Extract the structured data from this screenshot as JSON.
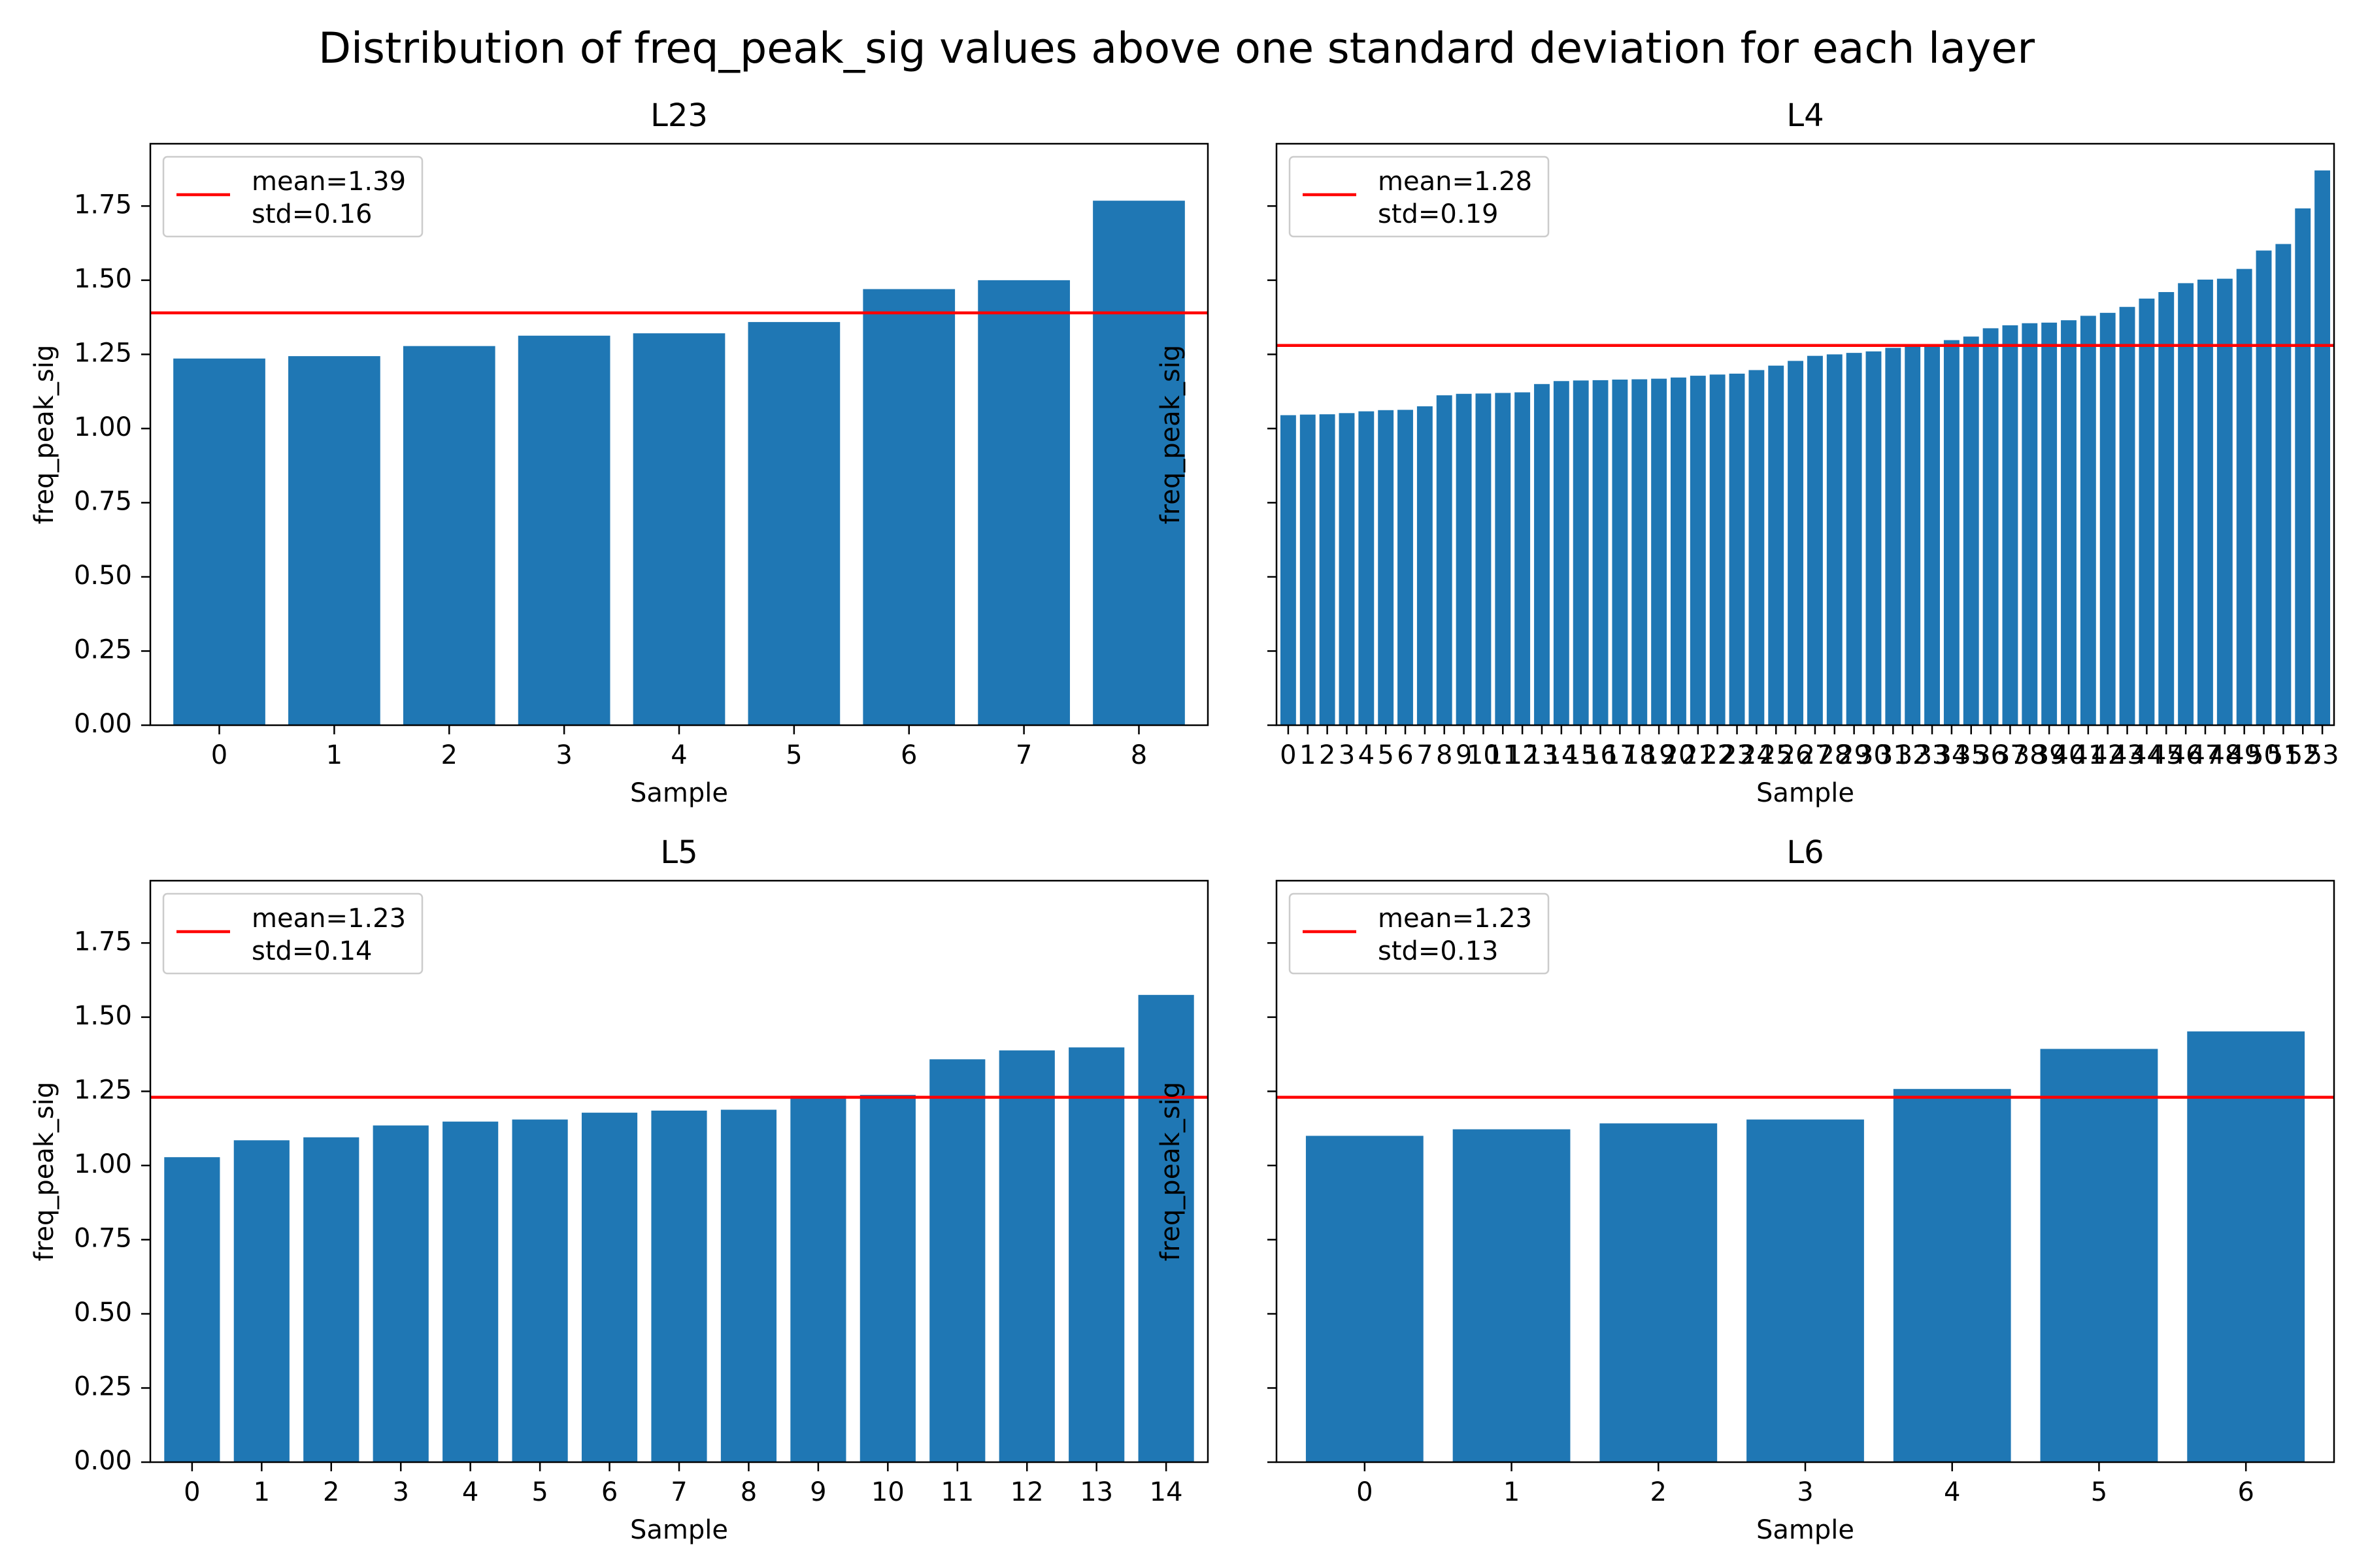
{
  "figure": {
    "title": "Distribution of freq_peak_sig values above one standard deviation for each layer"
  },
  "colors": {
    "bar": "#1f77b4",
    "mean_line": "#ff0000",
    "axes": "#000000",
    "legend_border": "#cccccc"
  },
  "chart_data": [
    {
      "type": "bar",
      "title": "L23",
      "xlabel": "Sample",
      "ylabel": "freq_peak_sig",
      "ylim": [
        0,
        1.96
      ],
      "yticks": [
        "0.00",
        "0.25",
        "0.50",
        "0.75",
        "1.00",
        "1.25",
        "1.50",
        "1.75"
      ],
      "show_ytick_labels": true,
      "categories": [
        "0",
        "1",
        "2",
        "3",
        "4",
        "5",
        "6",
        "7",
        "8"
      ],
      "values": [
        1.236,
        1.244,
        1.278,
        1.313,
        1.321,
        1.359,
        1.47,
        1.5,
        1.768
      ],
      "mean": 1.39,
      "legend": {
        "line1": "mean=1.39",
        "line2": "std=0.16",
        "placement": "upper-left"
      }
    },
    {
      "type": "bar",
      "title": "L4",
      "xlabel": "Sample",
      "ylabel": "freq_peak_sig",
      "ylim": [
        0,
        1.96
      ],
      "yticks": [
        "0.00",
        "0.25",
        "0.50",
        "0.75",
        "1.00",
        "1.25",
        "1.50",
        "1.75"
      ],
      "show_ytick_labels": false,
      "categories": [
        "0",
        "1",
        "2",
        "3",
        "4",
        "5",
        "6",
        "7",
        "8",
        "9",
        "10",
        "11",
        "12",
        "13",
        "14",
        "15",
        "16",
        "17",
        "18",
        "19",
        "20",
        "21",
        "22",
        "23",
        "24",
        "25",
        "26",
        "27",
        "28",
        "29",
        "30",
        "31",
        "32",
        "33",
        "34",
        "35",
        "36",
        "37",
        "38",
        "39",
        "40",
        "41",
        "42",
        "43",
        "44",
        "45",
        "46",
        "47",
        "48",
        "49",
        "50",
        "51",
        "52",
        "53"
      ],
      "values": [
        1.045,
        1.047,
        1.048,
        1.052,
        1.058,
        1.062,
        1.063,
        1.075,
        1.112,
        1.117,
        1.118,
        1.12,
        1.122,
        1.15,
        1.16,
        1.162,
        1.163,
        1.165,
        1.166,
        1.168,
        1.172,
        1.178,
        1.182,
        1.185,
        1.197,
        1.212,
        1.228,
        1.245,
        1.25,
        1.255,
        1.26,
        1.272,
        1.278,
        1.285,
        1.298,
        1.31,
        1.338,
        1.348,
        1.355,
        1.357,
        1.365,
        1.38,
        1.39,
        1.41,
        1.438,
        1.46,
        1.49,
        1.502,
        1.505,
        1.538,
        1.6,
        1.622,
        1.742,
        1.87
      ],
      "mean": 1.28,
      "legend": {
        "line1": "mean=1.28",
        "line2": "std=0.19",
        "placement": "upper-left"
      }
    },
    {
      "type": "bar",
      "title": "L5",
      "xlabel": "Sample",
      "ylabel": "freq_peak_sig",
      "ylim": [
        0,
        1.96
      ],
      "yticks": [
        "0.00",
        "0.25",
        "0.50",
        "0.75",
        "1.00",
        "1.25",
        "1.50",
        "1.75"
      ],
      "show_ytick_labels": true,
      "categories": [
        "0",
        "1",
        "2",
        "3",
        "4",
        "5",
        "6",
        "7",
        "8",
        "9",
        "10",
        "11",
        "12",
        "13",
        "14"
      ],
      "values": [
        1.028,
        1.085,
        1.095,
        1.135,
        1.148,
        1.155,
        1.178,
        1.185,
        1.188,
        1.235,
        1.238,
        1.358,
        1.388,
        1.398,
        1.575
      ],
      "mean": 1.23,
      "legend": {
        "line1": "mean=1.23",
        "line2": "std=0.14",
        "placement": "upper-left"
      }
    },
    {
      "type": "bar",
      "title": "L6",
      "xlabel": "Sample",
      "ylabel": "freq_peak_sig",
      "ylim": [
        0,
        1.96
      ],
      "yticks": [
        "0.00",
        "0.25",
        "0.50",
        "0.75",
        "1.00",
        "1.25",
        "1.50",
        "1.75"
      ],
      "show_ytick_labels": false,
      "categories": [
        "0",
        "1",
        "2",
        "3",
        "4",
        "5",
        "6"
      ],
      "values": [
        1.1,
        1.122,
        1.142,
        1.155,
        1.258,
        1.393,
        1.452
      ],
      "mean": 1.23,
      "legend": {
        "line1": "mean=1.23",
        "line2": "std=0.13",
        "placement": "upper-left"
      }
    }
  ]
}
